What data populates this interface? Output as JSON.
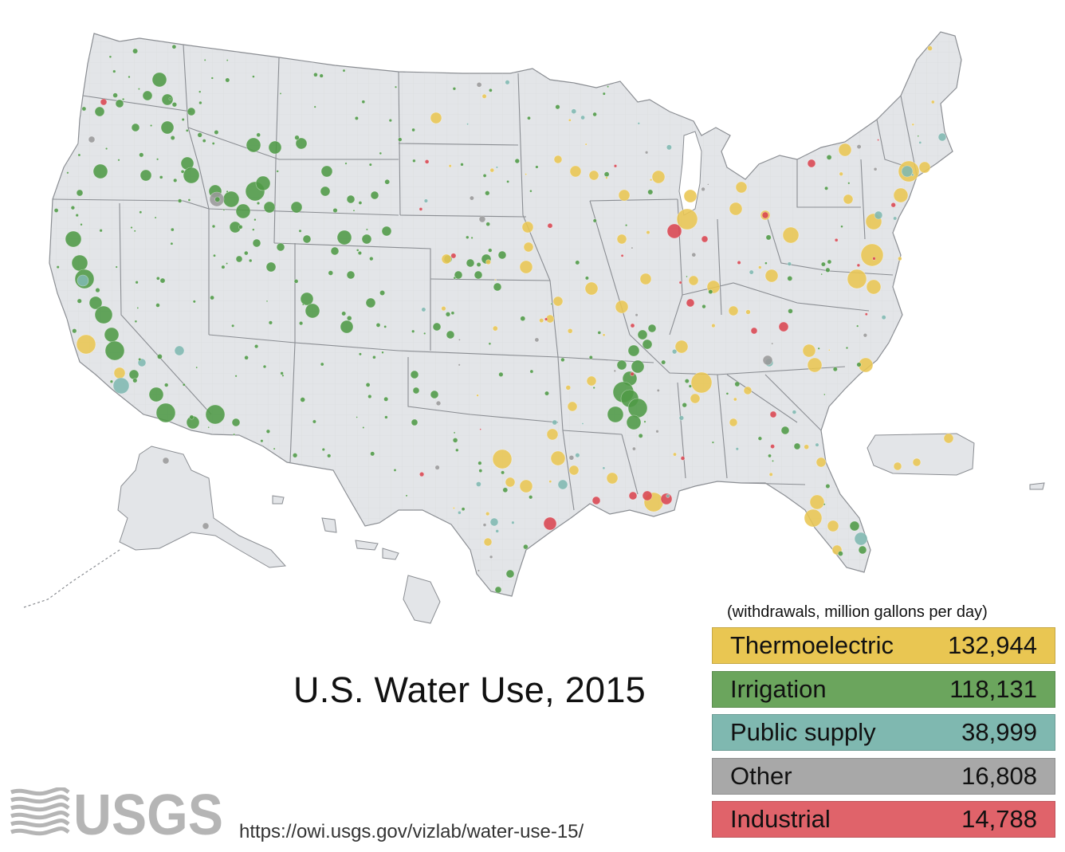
{
  "title": "U.S. Water Use, 2015",
  "legend": {
    "caption": "(withdrawals, million gallons per day)",
    "items": [
      {
        "label": "Thermoelectric",
        "value": "132,944",
        "color": "#E9C652"
      },
      {
        "label": "Irrigation",
        "value": "118,131",
        "color": "#6BA55D"
      },
      {
        "label": "Public supply",
        "value": "38,999",
        "color": "#7FB8B0"
      },
      {
        "label": "Other",
        "value": "16,808",
        "color": "#A8A8A8"
      },
      {
        "label": "Industrial",
        "value": "14,788",
        "color": "#E0636A"
      }
    ]
  },
  "logo": {
    "text": "USGS"
  },
  "url": "https://owi.usgs.gov/vizlab/water-use-15/",
  "colors": {
    "land": "#E3E5E8",
    "state_border": "#8A8D92",
    "county_border": "#C8CBD0",
    "thermoelectric": "#E9C652",
    "irrigation": "#4E9A45",
    "public_supply": "#7FB8B0",
    "other": "#9A9A9A",
    "industrial": "#D94550"
  }
}
